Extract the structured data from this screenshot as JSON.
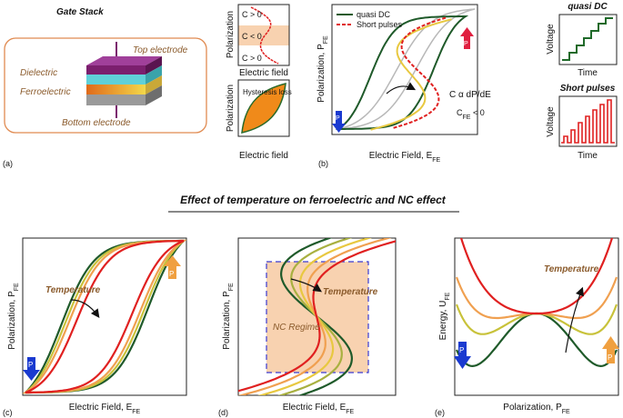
{
  "panel_a": {
    "title": "Gate Stack",
    "top": "Top electrode",
    "dielectric": "Dielectric",
    "ferroelectric": "Ferroelectric",
    "bottom": "Bottom electrode",
    "label": "(a)"
  },
  "ncurve": {
    "ylabel": "Polarization",
    "c_top": "C > 0",
    "c_mid": "C < 0",
    "c_bottom": "C > 0",
    "xlabel": "Electric field"
  },
  "hyst": {
    "ylabel": "Polarization",
    "loss": "Hysteresis loss",
    "xlabel": "Electric field"
  },
  "panel_b": {
    "legend": [
      "quasi DC",
      "Short pulses"
    ],
    "ylabel": {
      "text": "Polarization, P",
      "sub": "FE"
    },
    "xlabel": {
      "text": "Electric Field, E",
      "sub": "FE"
    },
    "cap": "C α dP/dE",
    "cfe": {
      "text": "C",
      "sub": "FE",
      "rest": " < 0"
    },
    "p_down": "P",
    "p_up": "P",
    "label": "(b)"
  },
  "pulses": {
    "dc_title": "quasi DC",
    "dc_ylabel": "Voltage",
    "dc_xlabel": "Time",
    "sp_title": "Short pulses",
    "sp_ylabel": "Voltage",
    "sp_xlabel": "Time"
  },
  "section_title": "Effect of temperature on ferroelectric and NC effect",
  "panel_c": {
    "ylabel": {
      "text": "Polarization, P",
      "sub": "FE"
    },
    "xlabel": {
      "text": "Electric Field, E",
      "sub": "FE"
    },
    "temperature": "Temperature",
    "p_down": "P",
    "p_up": "P",
    "label": "(c)"
  },
  "panel_d": {
    "ylabel": {
      "text": "Polarization, P",
      "sub": "FE"
    },
    "xlabel": {
      "text": "Electric Field, E",
      "sub": "FE"
    },
    "temperature": "Temperature",
    "nc": "NC Regime",
    "label": "(d)"
  },
  "panel_e": {
    "ylabel": {
      "text": "Energy, U",
      "sub": "FE"
    },
    "xlabel": {
      "text": "Polarization, P",
      "sub": "FE"
    },
    "temperature": "Temperature",
    "p_down": "P",
    "p_up": "P",
    "label": "(e)"
  }
}
